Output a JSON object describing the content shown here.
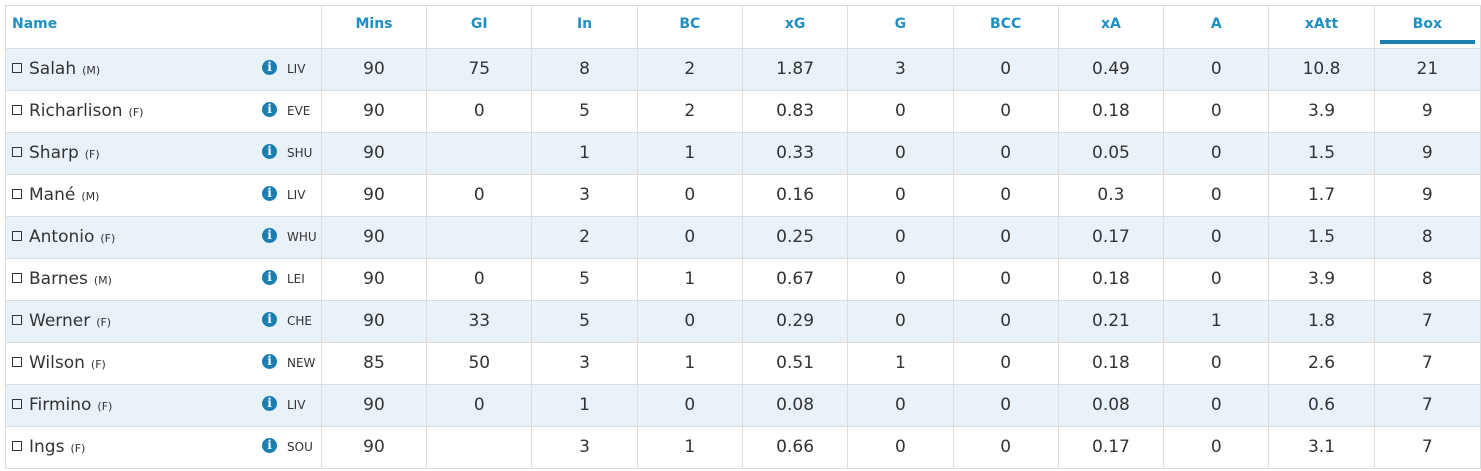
{
  "columns": [
    {
      "label": "Name"
    },
    {
      "label": "Mins"
    },
    {
      "label": "GI"
    },
    {
      "label": "In"
    },
    {
      "label": "BC"
    },
    {
      "label": "xG"
    },
    {
      "label": "G"
    },
    {
      "label": "BCC"
    },
    {
      "label": "xA"
    },
    {
      "label": "A"
    },
    {
      "label": "xAtt"
    },
    {
      "label": "Box"
    }
  ],
  "sorted_column": "Box",
  "colors": {
    "header_text": "#1f8fc4",
    "accent": "#1a7fb0",
    "alt_row": "#e9f2f8",
    "border": "#dcdcdc"
  },
  "info_icon": {
    "glyph": "i"
  },
  "rows": [
    {
      "name": "Salah",
      "pos": "(M)",
      "team": "LIV",
      "vals": [
        "90",
        "75",
        "8",
        "2",
        "1.87",
        "3",
        "0",
        "0.49",
        "0",
        "10.8",
        "21"
      ]
    },
    {
      "name": "Richarlison",
      "pos": "(F)",
      "team": "EVE",
      "vals": [
        "90",
        "0",
        "5",
        "2",
        "0.83",
        "0",
        "0",
        "0.18",
        "0",
        "3.9",
        "9"
      ]
    },
    {
      "name": "Sharp",
      "pos": "(F)",
      "team": "SHU",
      "vals": [
        "90",
        "",
        "1",
        "1",
        "0.33",
        "0",
        "0",
        "0.05",
        "0",
        "1.5",
        "9"
      ]
    },
    {
      "name": "Mané",
      "pos": "(M)",
      "team": "LIV",
      "vals": [
        "90",
        "0",
        "3",
        "0",
        "0.16",
        "0",
        "0",
        "0.3",
        "0",
        "1.7",
        "9"
      ]
    },
    {
      "name": "Antonio",
      "pos": "(F)",
      "team": "WHU",
      "vals": [
        "90",
        "",
        "2",
        "0",
        "0.25",
        "0",
        "0",
        "0.17",
        "0",
        "1.5",
        "8"
      ]
    },
    {
      "name": "Barnes",
      "pos": "(M)",
      "team": "LEI",
      "vals": [
        "90",
        "0",
        "5",
        "1",
        "0.67",
        "0",
        "0",
        "0.18",
        "0",
        "3.9",
        "8"
      ]
    },
    {
      "name": "Werner",
      "pos": "(F)",
      "team": "CHE",
      "vals": [
        "90",
        "33",
        "5",
        "0",
        "0.29",
        "0",
        "0",
        "0.21",
        "1",
        "1.8",
        "7"
      ]
    },
    {
      "name": "Wilson",
      "pos": "(F)",
      "team": "NEW",
      "vals": [
        "85",
        "50",
        "3",
        "1",
        "0.51",
        "1",
        "0",
        "0.18",
        "0",
        "2.6",
        "7"
      ]
    },
    {
      "name": "Firmino",
      "pos": "(F)",
      "team": "LIV",
      "vals": [
        "90",
        "0",
        "1",
        "0",
        "0.08",
        "0",
        "0",
        "0.08",
        "0",
        "0.6",
        "7"
      ]
    },
    {
      "name": "Ings",
      "pos": "(F)",
      "team": "SOU",
      "vals": [
        "90",
        "",
        "3",
        "1",
        "0.66",
        "0",
        "0",
        "0.17",
        "0",
        "3.1",
        "7"
      ]
    }
  ]
}
